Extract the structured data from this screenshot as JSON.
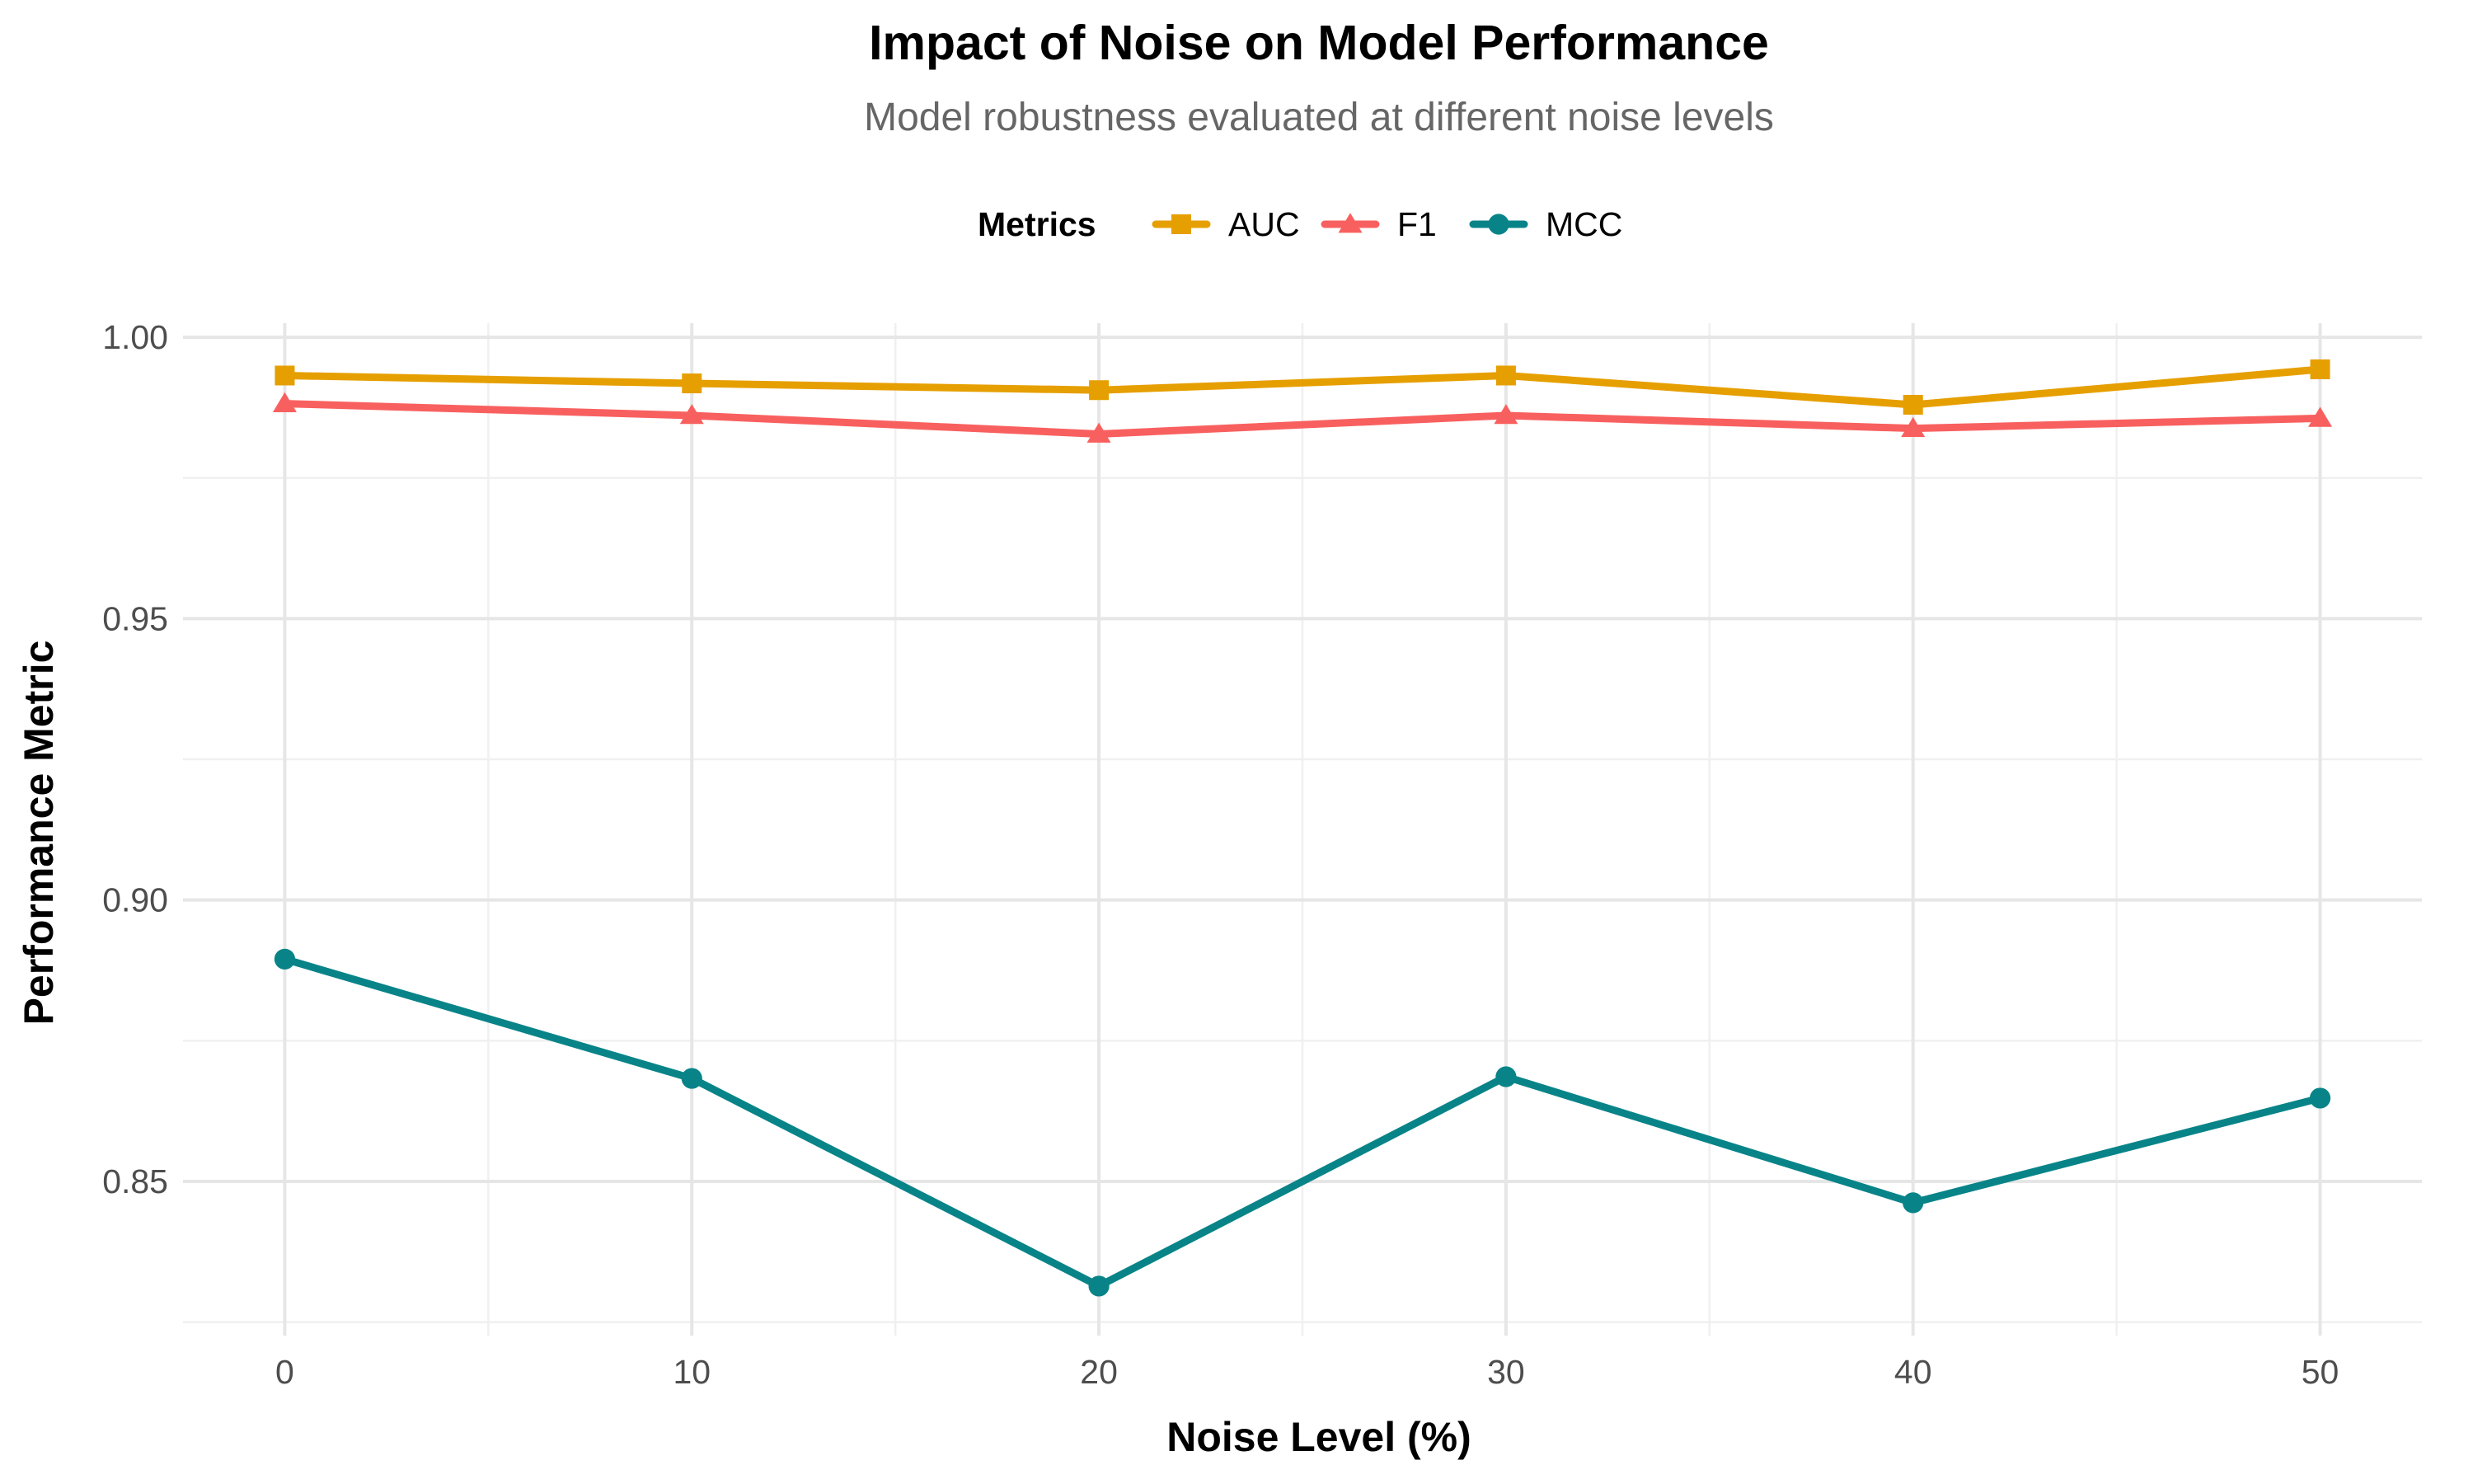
{
  "chart_data": {
    "type": "line",
    "title": "Impact of Noise on Model Performance",
    "subtitle": "Model robustness evaluated at different noise levels",
    "xlabel": "Noise Level (%)",
    "ylabel": "Performance Metric",
    "x": [
      0,
      10,
      20,
      30,
      40,
      50
    ],
    "xlim": [
      -2.5,
      52.5
    ],
    "ylim": [
      0.8226,
      1.0025
    ],
    "x_ticks": [
      0,
      10,
      20,
      30,
      40,
      50
    ],
    "x_tick_labels": [
      "0",
      "10",
      "20",
      "30",
      "40",
      "50"
    ],
    "y_ticks": [
      0.85,
      0.9,
      0.95,
      1.0
    ],
    "y_tick_labels": [
      "0.85",
      "0.90",
      "0.95",
      "1.00"
    ],
    "grid": true,
    "legend": {
      "title": "Metrics",
      "position": "top"
    },
    "series": [
      {
        "name": "AUC",
        "color": "#E69F00",
        "marker": "square",
        "values": [
          0.9932,
          0.9918,
          0.9906,
          0.9932,
          0.988,
          0.9943
        ]
      },
      {
        "name": "F1",
        "color": "#F8605F",
        "marker": "triangle",
        "values": [
          0.9882,
          0.9861,
          0.9828,
          0.9861,
          0.9838,
          0.9856
        ]
      },
      {
        "name": "MCC",
        "color": "#088488",
        "marker": "circle",
        "values": [
          0.8895,
          0.8683,
          0.8314,
          0.8686,
          0.8462,
          0.8648
        ]
      }
    ]
  }
}
